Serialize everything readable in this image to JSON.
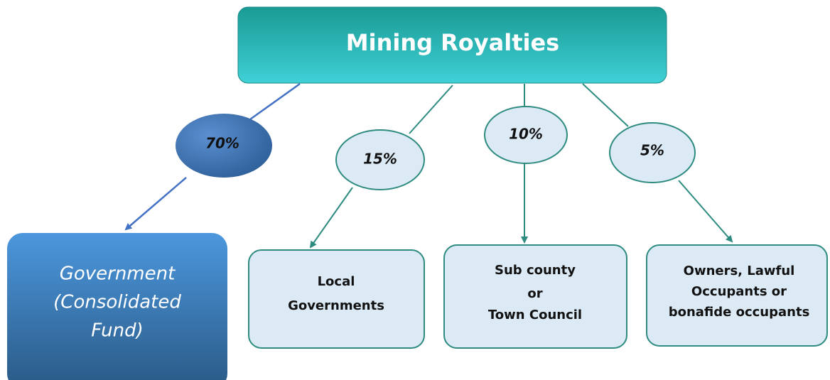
{
  "root": "Mining Royalties",
  "branches": [
    {
      "share": "70%",
      "recipient": [
        "Government",
        "(Consolidated",
        "Fund)"
      ]
    },
    {
      "share": "15%",
      "recipient": [
        "Local",
        "Governments"
      ]
    },
    {
      "share": "10%",
      "recipient": [
        "Sub county",
        "or",
        "Town Council"
      ]
    },
    {
      "share": "5%",
      "recipient": [
        "Owners, Lawful",
        "Occupants or",
        "bonafide occupants"
      ]
    }
  ]
}
